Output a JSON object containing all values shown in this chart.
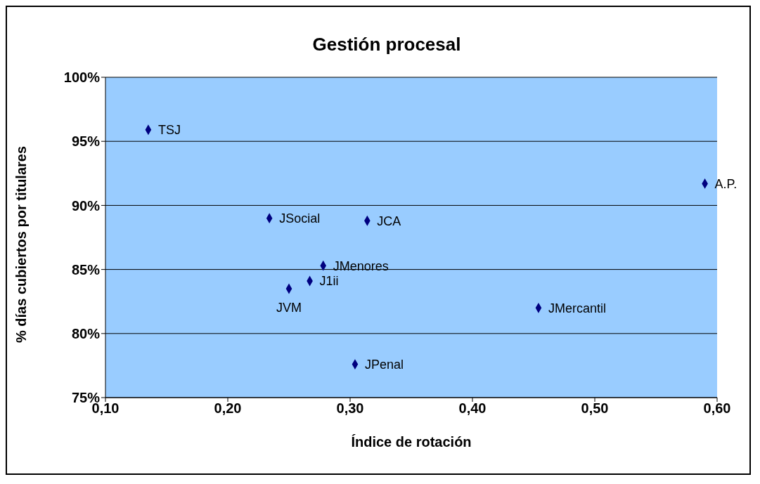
{
  "chart_data": {
    "type": "scatter",
    "title": "Gestión procesal",
    "xlabel": "Índice de rotación",
    "ylabel": "% días cubiertos por titulares",
    "x": [
      0.135,
      0.59,
      0.234,
      0.314,
      0.278,
      0.267,
      0.25,
      0.454,
      0.304
    ],
    "values": [
      95.9,
      91.7,
      89.0,
      88.8,
      85.3,
      84.1,
      83.5,
      82.0,
      77.6
    ],
    "color": "#000080",
    "marker": "diamond",
    "xlim": [
      0.1,
      0.6
    ],
    "xticks": [
      {
        "value": 0.1,
        "label": "0,10"
      },
      {
        "value": 0.2,
        "label": "0,20"
      },
      {
        "value": 0.3,
        "label": "0,30"
      },
      {
        "value": 0.4,
        "label": "0,40"
      },
      {
        "value": 0.5,
        "label": "0,50"
      },
      {
        "value": 0.6,
        "label": "0,60"
      }
    ],
    "ylim": [
      75,
      100
    ],
    "yticks": [
      {
        "value": 75,
        "label": "75%"
      },
      {
        "value": 80,
        "label": "80%"
      },
      {
        "value": 85,
        "label": "85%"
      },
      {
        "value": 90,
        "label": "90%"
      },
      {
        "value": 95,
        "label": "95%"
      },
      {
        "value": 100,
        "label": "100%"
      }
    ],
    "grid": "y",
    "annotations": [
      {
        "text": "TSJ",
        "x": 0.135,
        "y": 95.9
      },
      {
        "text": "A.P.",
        "x": 0.59,
        "y": 91.7
      },
      {
        "text": "JSocial",
        "x": 0.234,
        "y": 89.0
      },
      {
        "text": "JCA",
        "x": 0.314,
        "y": 88.8
      },
      {
        "text": "JMenores",
        "x": 0.278,
        "y": 85.3
      },
      {
        "text": "J1ii",
        "x": 0.267,
        "y": 84.1
      },
      {
        "text": "JVM",
        "x": 0.25,
        "y": 83.5
      },
      {
        "text": "JMercantil",
        "x": 0.454,
        "y": 82.0
      },
      {
        "text": "JPenal",
        "x": 0.304,
        "y": 77.6
      }
    ]
  }
}
